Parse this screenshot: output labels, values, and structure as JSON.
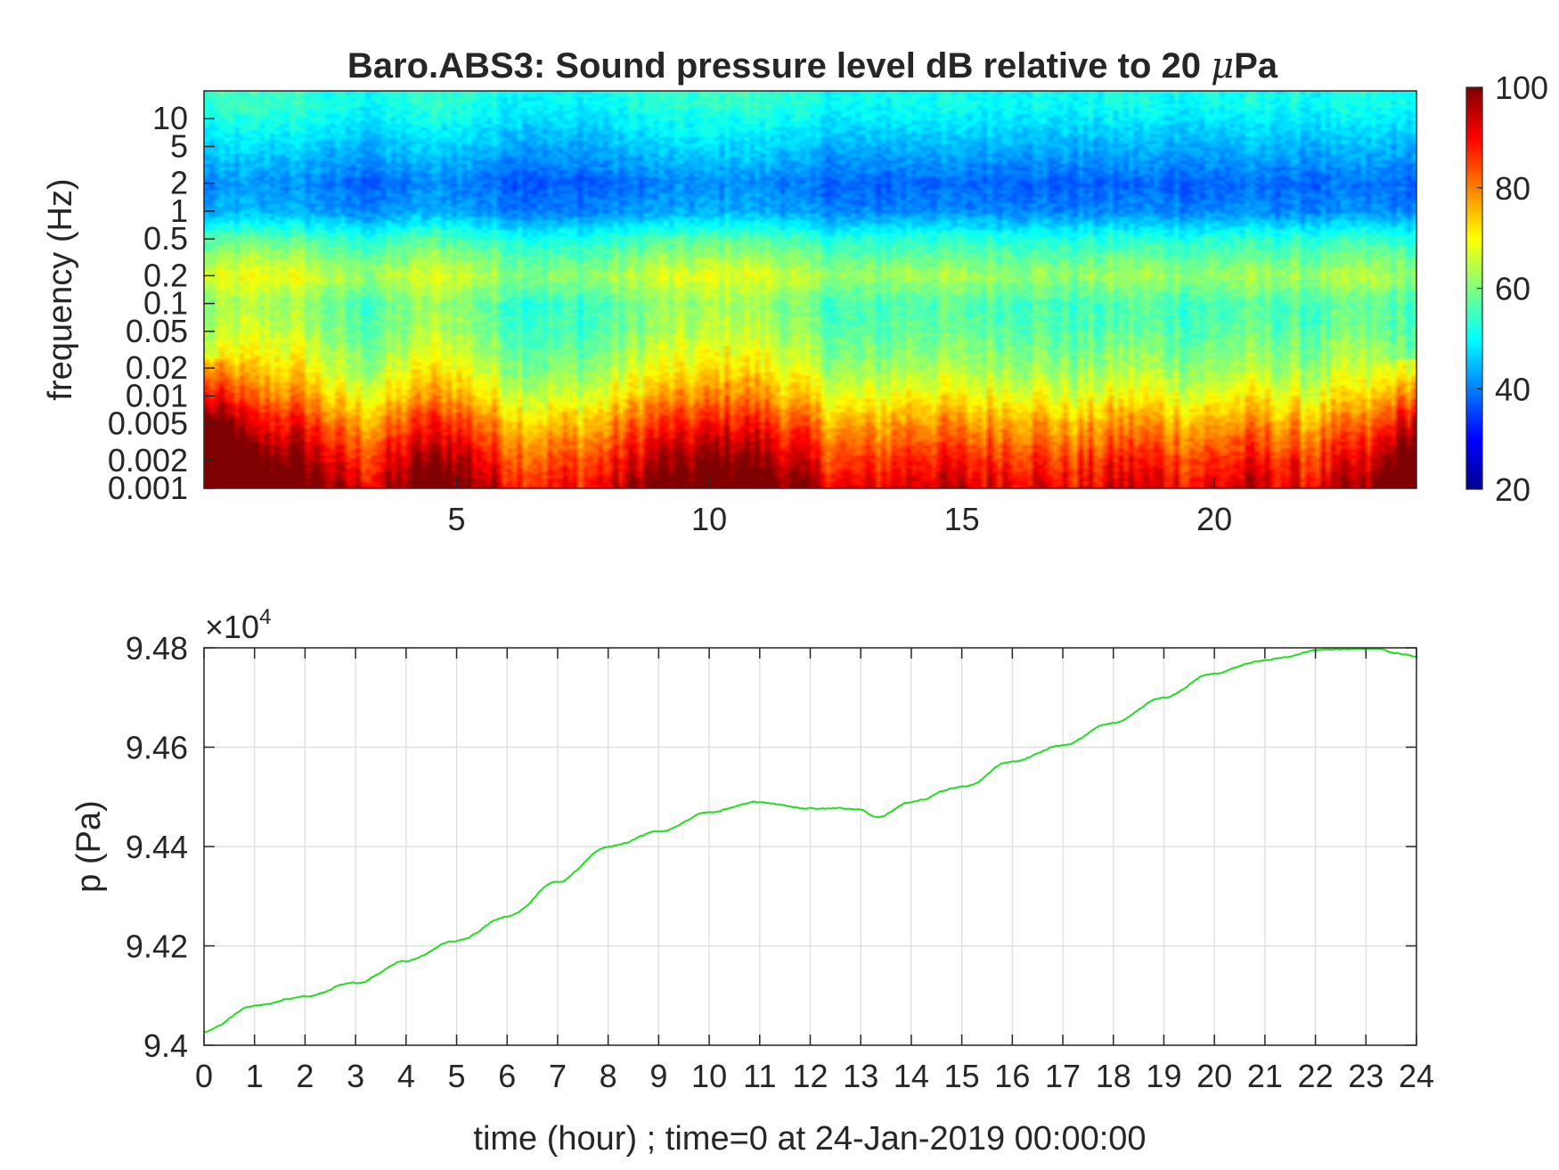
{
  "chart_data": [
    {
      "type": "heatmap",
      "title": "Baro.ABS3: Sound pressure level dB relative to 20 μPa",
      "title_prefix": "Baro.ABS3: Sound pressure level dB relative to 20 ",
      "title_mu": "μ",
      "title_suffix": "Pa",
      "ylabel": "frequency (Hz)",
      "xlabel": "",
      "xlim": [
        0,
        24
      ],
      "ylim": [
        0.001,
        20
      ],
      "y_scale": "log",
      "x_ticks": [
        5,
        10,
        15,
        20
      ],
      "x_tick_labels": [
        "5",
        "10",
        "15",
        "20"
      ],
      "y_ticks": [
        0.001,
        0.002,
        0.005,
        0.01,
        0.02,
        0.05,
        0.1,
        0.2,
        0.5,
        1,
        2,
        5,
        10
      ],
      "y_tick_labels": [
        "0.001",
        "0.002",
        "0.005",
        "0.01",
        "0.02",
        "0.05",
        "0.1",
        "0.2",
        "0.5",
        "1",
        "2",
        "5",
        "10"
      ],
      "colorbar": {
        "range": [
          20,
          100
        ],
        "ticks": [
          20,
          40,
          60,
          80,
          100
        ],
        "tick_labels": [
          "20",
          "40",
          "60",
          "80",
          "100"
        ],
        "colormap": "jet"
      },
      "level_profile_db": [
        {
          "freq": 15,
          "db": 50
        },
        {
          "freq": 5,
          "db": 43
        },
        {
          "freq": 2,
          "db": 37
        },
        {
          "freq": 1,
          "db": 40
        },
        {
          "freq": 0.5,
          "db": 52
        },
        {
          "freq": 0.2,
          "db": 61
        },
        {
          "freq": 0.1,
          "db": 54
        },
        {
          "freq": 0.05,
          "db": 55
        },
        {
          "freq": 0.02,
          "db": 60
        },
        {
          "freq": 0.01,
          "db": 66
        },
        {
          "freq": 0.005,
          "db": 74
        },
        {
          "freq": 0.002,
          "db": 83
        },
        {
          "freq": 0.001,
          "db": 88
        }
      ],
      "time_activity": [
        {
          "t": 0.5,
          "amp": 0.9
        },
        {
          "t": 1.8,
          "amp": 0.85
        },
        {
          "t": 4.3,
          "amp": 0.55
        },
        {
          "t": 5.0,
          "amp": 0.5
        },
        {
          "t": 9.0,
          "amp": 0.7
        },
        {
          "t": 10.4,
          "amp": 0.85
        },
        {
          "t": 11.5,
          "amp": 0.5
        },
        {
          "t": 14.2,
          "amp": 0.35
        },
        {
          "t": 16.0,
          "amp": 0.3
        },
        {
          "t": 18.5,
          "amp": 0.3
        },
        {
          "t": 20.8,
          "amp": 0.3
        },
        {
          "t": 23.0,
          "amp": 0.4
        }
      ]
    },
    {
      "type": "line",
      "title": "",
      "xlabel": "time (hour) ; time=0 at 24-Jan-2019 00:00:00",
      "ylabel": "p (Pa)",
      "y_multiplier_base": "×10",
      "y_multiplier_exp": "4",
      "xlim": [
        0,
        24
      ],
      "ylim": [
        94000,
        94800
      ],
      "grid": true,
      "x_ticks": [
        0,
        1,
        2,
        3,
        4,
        5,
        6,
        7,
        8,
        9,
        10,
        11,
        12,
        13,
        14,
        15,
        16,
        17,
        18,
        19,
        20,
        21,
        22,
        23,
        24
      ],
      "x_tick_labels": [
        "0",
        "1",
        "2",
        "3",
        "4",
        "5",
        "6",
        "7",
        "8",
        "9",
        "10",
        "11",
        "12",
        "13",
        "14",
        "15",
        "16",
        "17",
        "18",
        "19",
        "20",
        "21",
        "22",
        "23",
        "24"
      ],
      "y_ticks": [
        94000,
        94200,
        94400,
        94600,
        94800
      ],
      "y_tick_labels": [
        "9.4",
        "9.42",
        "9.44",
        "9.46",
        "9.48"
      ],
      "line_color": "#22dd22",
      "series": [
        {
          "x": [
            0,
            1,
            2,
            3,
            4,
            5,
            6,
            7,
            8,
            9,
            10,
            11,
            12,
            13,
            13.3,
            14,
            15,
            16,
            17,
            18,
            19,
            20,
            21,
            22,
            23,
            24
          ],
          "y": [
            94028,
            94080,
            94098,
            94125,
            94170,
            94210,
            94260,
            94330,
            94400,
            94430,
            94470,
            94490,
            94475,
            94475,
            94460,
            94490,
            94520,
            94570,
            94605,
            94650,
            94700,
            94750,
            94775,
            94795,
            94800,
            94785
          ]
        }
      ]
    }
  ]
}
